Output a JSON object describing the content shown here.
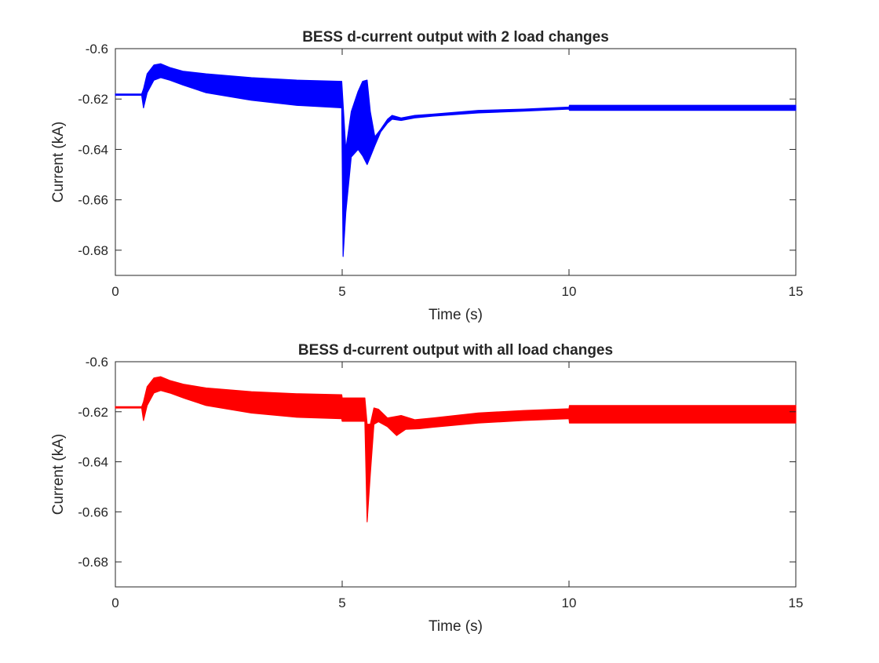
{
  "chart_data": [
    {
      "type": "line",
      "title": "BESS d-current output with 2 load changes",
      "xlabel": "Time (s)",
      "ylabel": "Current (kA)",
      "xlim": [
        0,
        15
      ],
      "ylim": [
        -0.69,
        -0.6
      ],
      "xticks": [
        0,
        5,
        10,
        15
      ],
      "yticks": [
        -0.6,
        -0.62,
        -0.64,
        -0.66,
        -0.68
      ],
      "grid": false,
      "series": [
        {
          "color": "#0000ff",
          "upper": [
            [
              0,
              -0.618
            ],
            [
              0.58,
              -0.618
            ],
            [
              0.62,
              -0.616
            ],
            [
              0.7,
              -0.61
            ],
            [
              0.85,
              -0.6065
            ],
            [
              1.0,
              -0.606
            ],
            [
              1.2,
              -0.6075
            ],
            [
              1.5,
              -0.609
            ],
            [
              2.0,
              -0.61
            ],
            [
              3.0,
              -0.6115
            ],
            [
              4.0,
              -0.6125
            ],
            [
              4.99,
              -0.613
            ],
            [
              5.02,
              -0.622
            ],
            [
              5.08,
              -0.64
            ],
            [
              5.2,
              -0.625
            ],
            [
              5.35,
              -0.617
            ],
            [
              5.45,
              -0.613
            ],
            [
              5.55,
              -0.6125
            ],
            [
              5.62,
              -0.625
            ],
            [
              5.72,
              -0.635
            ],
            [
              5.85,
              -0.632
            ],
            [
              6.0,
              -0.628
            ],
            [
              6.1,
              -0.6265
            ],
            [
              6.3,
              -0.6275
            ],
            [
              6.6,
              -0.6265
            ],
            [
              7.0,
              -0.626
            ],
            [
              8.0,
              -0.6245
            ],
            [
              9.0,
              -0.624
            ],
            [
              10.0,
              -0.6232
            ],
            [
              10.01,
              -0.6225
            ],
            [
              15,
              -0.6225
            ]
          ],
          "lower": [
            [
              0,
              -0.6185
            ],
            [
              0.58,
              -0.6185
            ],
            [
              0.62,
              -0.6235
            ],
            [
              0.7,
              -0.6175
            ],
            [
              0.85,
              -0.6125
            ],
            [
              1.0,
              -0.6115
            ],
            [
              1.2,
              -0.6125
            ],
            [
              1.5,
              -0.6145
            ],
            [
              2.0,
              -0.6175
            ],
            [
              3.0,
              -0.6205
            ],
            [
              4.0,
              -0.6225
            ],
            [
              4.99,
              -0.6235
            ],
            [
              5.02,
              -0.6825
            ],
            [
              5.08,
              -0.665
            ],
            [
              5.2,
              -0.643
            ],
            [
              5.35,
              -0.64
            ],
            [
              5.45,
              -0.6425
            ],
            [
              5.55,
              -0.646
            ],
            [
              5.62,
              -0.643
            ],
            [
              5.72,
              -0.6385
            ],
            [
              5.85,
              -0.633
            ],
            [
              6.0,
              -0.6295
            ],
            [
              6.1,
              -0.628
            ],
            [
              6.3,
              -0.6285
            ],
            [
              6.6,
              -0.6275
            ],
            [
              7.0,
              -0.6268
            ],
            [
              8.0,
              -0.6255
            ],
            [
              9.0,
              -0.6248
            ],
            [
              10.0,
              -0.624
            ],
            [
              10.01,
              -0.6245
            ],
            [
              15,
              -0.6245
            ]
          ]
        }
      ]
    },
    {
      "type": "line",
      "title": "BESS d-current output with all load changes",
      "xlabel": "Time (s)",
      "ylabel": "Current (kA)",
      "xlim": [
        0,
        15
      ],
      "ylim": [
        -0.69,
        -0.6
      ],
      "xticks": [
        0,
        5,
        10,
        15
      ],
      "yticks": [
        -0.6,
        -0.62,
        -0.64,
        -0.66,
        -0.68
      ],
      "grid": false,
      "series": [
        {
          "color": "#ff0000",
          "upper": [
            [
              0,
              -0.618
            ],
            [
              0.58,
              -0.618
            ],
            [
              0.62,
              -0.616
            ],
            [
              0.7,
              -0.61
            ],
            [
              0.85,
              -0.6065
            ],
            [
              1.0,
              -0.606
            ],
            [
              1.2,
              -0.6075
            ],
            [
              1.5,
              -0.609
            ],
            [
              2.0,
              -0.6105
            ],
            [
              3.0,
              -0.612
            ],
            [
              4.0,
              -0.6128
            ],
            [
              4.99,
              -0.6132
            ],
            [
              5.0,
              -0.6145
            ],
            [
              5.5,
              -0.6145
            ],
            [
              5.55,
              -0.625
            ],
            [
              5.62,
              -0.625
            ],
            [
              5.7,
              -0.6185
            ],
            [
              5.8,
              -0.619
            ],
            [
              6.0,
              -0.6225
            ],
            [
              6.3,
              -0.6215
            ],
            [
              6.6,
              -0.6232
            ],
            [
              7.0,
              -0.6225
            ],
            [
              8.0,
              -0.6205
            ],
            [
              9.0,
              -0.6195
            ],
            [
              10.0,
              -0.6188
            ],
            [
              10.01,
              -0.6175
            ],
            [
              15,
              -0.6175
            ]
          ],
          "lower": [
            [
              0,
              -0.6185
            ],
            [
              0.58,
              -0.6185
            ],
            [
              0.62,
              -0.6235
            ],
            [
              0.7,
              -0.6175
            ],
            [
              0.85,
              -0.6125
            ],
            [
              1.0,
              -0.6115
            ],
            [
              1.2,
              -0.6125
            ],
            [
              1.5,
              -0.6145
            ],
            [
              2.0,
              -0.6175
            ],
            [
              3.0,
              -0.6205
            ],
            [
              4.0,
              -0.6222
            ],
            [
              4.99,
              -0.6228
            ],
            [
              5.0,
              -0.6238
            ],
            [
              5.5,
              -0.6238
            ],
            [
              5.55,
              -0.664
            ],
            [
              5.62,
              -0.645
            ],
            [
              5.7,
              -0.625
            ],
            [
              5.8,
              -0.624
            ],
            [
              6.0,
              -0.626
            ],
            [
              6.2,
              -0.6295
            ],
            [
              6.4,
              -0.627
            ],
            [
              6.7,
              -0.6268
            ],
            [
              7.0,
              -0.6262
            ],
            [
              8.0,
              -0.6245
            ],
            [
              9.0,
              -0.6235
            ],
            [
              10.0,
              -0.6228
            ],
            [
              10.01,
              -0.6245
            ],
            [
              15,
              -0.6245
            ]
          ]
        }
      ]
    }
  ]
}
